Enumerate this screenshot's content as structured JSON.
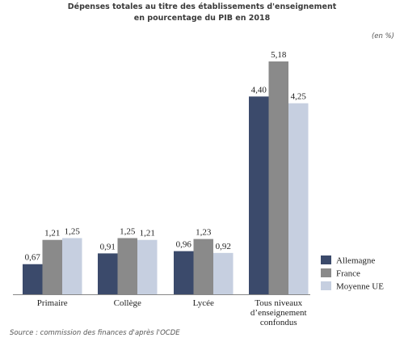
{
  "chart_data": {
    "type": "bar",
    "title_line1": "Dépenses totales au titre des établissements d'enseignement",
    "title_line2": "en pourcentage du PIB en 2018",
    "unit": "(en %)",
    "source": "Source : commission des finances d'après l'OCDE",
    "categories": [
      [
        "Primaire"
      ],
      [
        "Collège"
      ],
      [
        "Lycée"
      ],
      [
        "Tous niveaux",
        "d’enseignement",
        "confondus"
      ]
    ],
    "series": [
      {
        "name": "Allemagne",
        "color": "#3b4a6b",
        "values": [
          0.67,
          0.91,
          0.96,
          4.4
        ],
        "labels": [
          "0,67",
          "0,91",
          "0,96",
          "4,40"
        ]
      },
      {
        "name": "France",
        "color": "#8a8a8a",
        "values": [
          1.21,
          1.25,
          1.23,
          5.18
        ],
        "labels": [
          "1,21",
          "1,25",
          "1,23",
          "5,18"
        ]
      },
      {
        "name": "Moyenne UE",
        "color": "#c6cfe0",
        "values": [
          1.25,
          1.21,
          0.92,
          4.25
        ],
        "labels": [
          "1,25",
          "1,21",
          "0,92",
          "4,25"
        ]
      }
    ],
    "ylim": [
      0,
      5.18
    ],
    "grid": false,
    "legend_position": "right"
  }
}
